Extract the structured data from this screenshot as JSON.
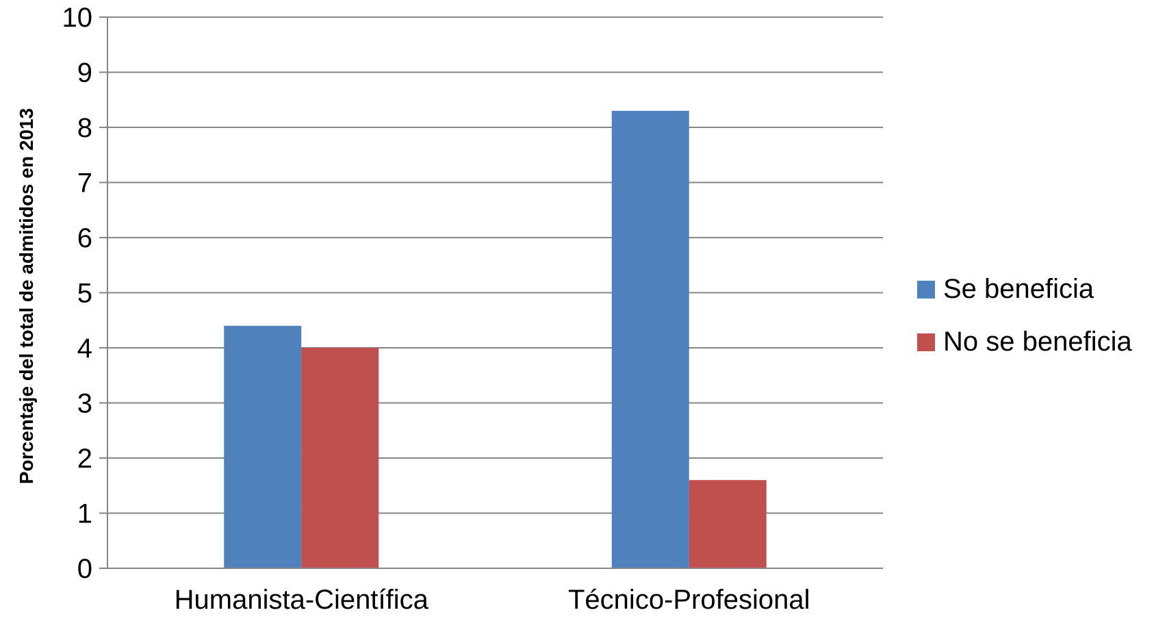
{
  "chart_data": {
    "type": "bar",
    "title": "",
    "xlabel": "",
    "ylabel": "Porcentaje del total de admitidos en 2013",
    "categories": [
      "Humanista-Científica",
      "Técnico-Profesional"
    ],
    "series": [
      {
        "name": "Se beneficia",
        "values": [
          4.4,
          8.3
        ],
        "color": "#4F81BD"
      },
      {
        "name": "No se beneficia",
        "values": [
          4.0,
          1.6
        ],
        "color": "#C0504D"
      }
    ],
    "ylim": [
      0,
      10
    ],
    "yticks": [
      "0",
      "1",
      "2",
      "3",
      "4",
      "5",
      "6",
      "7",
      "8",
      "9",
      "10"
    ],
    "grid": true,
    "legend_position": "right"
  }
}
